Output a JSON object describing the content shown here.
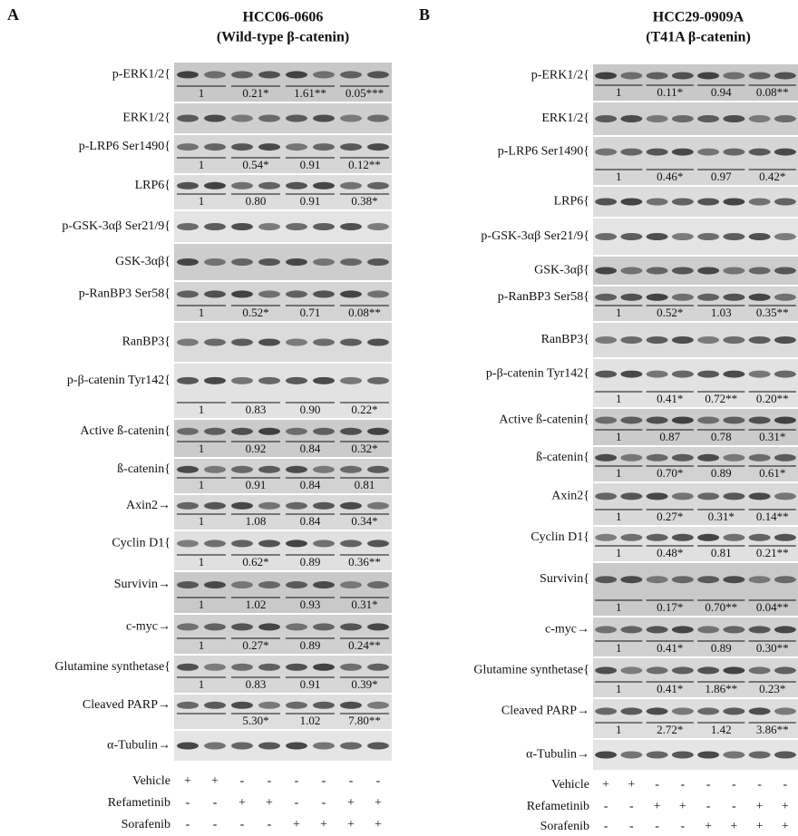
{
  "panels": [
    {
      "letter": "A",
      "title": [
        "HCC06-0606",
        "(Wild-type β-catenin)"
      ],
      "rows": [
        {
          "label": "p-ERK1/2",
          "marker": "{",
          "quant": [
            "1",
            "0.21*",
            "1.61**",
            "0.05***"
          ]
        },
        {
          "label": "ERK1/2",
          "marker": "{"
        },
        {
          "label": "p-LRP6 Ser1490",
          "marker": "{",
          "quant": [
            "1",
            "0.54*",
            "0.91",
            "0.12**"
          ]
        },
        {
          "label": "LRP6",
          "marker": "{",
          "quant": [
            "1",
            "0.80",
            "0.91",
            "0.38*"
          ]
        },
        {
          "label": "p-GSK-3αβ Ser21/9",
          "marker": "{"
        },
        {
          "label": "GSK-3αβ",
          "marker": "{"
        },
        {
          "label": "p-RanBP3 Ser58",
          "marker": "{",
          "quant": [
            "1",
            "0.52*",
            "0.71",
            "0.08**"
          ]
        },
        {
          "label": "RanBP3",
          "marker": "{"
        },
        {
          "label": "p-β-catenin Tyr142",
          "marker": "{",
          "quant": [
            "1",
            "0.83",
            "0.90",
            "0.22*"
          ]
        },
        {
          "label": "Active ß-catenin",
          "marker": "{",
          "quant": [
            "1",
            "0.92",
            "0.84",
            "0.32*"
          ]
        },
        {
          "label": "ß-catenin",
          "marker": "{",
          "quant": [
            "1",
            "0.91",
            "0.84",
            "0.81"
          ]
        },
        {
          "label": "Axin2",
          "marker": "→",
          "quant": [
            "1",
            "1.08",
            "0.84",
            "0.34*"
          ]
        },
        {
          "label": "Cyclin D1",
          "marker": "{",
          "quant": [
            "1",
            "0.62*",
            "0.89",
            "0.36**"
          ]
        },
        {
          "label": "Survivin",
          "marker": "→",
          "quant": [
            "1",
            "1.02",
            "0.93",
            "0.31*"
          ]
        },
        {
          "label": "c-myc",
          "marker": "→",
          "quant": [
            "1",
            "0.27*",
            "0.89",
            "0.24**"
          ]
        },
        {
          "label": "Glutamine synthetase",
          "marker": "{",
          "quant": [
            "1",
            "0.83",
            "0.91",
            "0.39*"
          ]
        },
        {
          "label": "Cleaved PARP",
          "marker": "→",
          "quant": [
            null,
            "5.30*",
            "1.02",
            "7.80**"
          ]
        },
        {
          "label": "α-Tubulin",
          "marker": "→"
        }
      ],
      "treatments": [
        {
          "name": "Vehicle",
          "signs": [
            "+",
            "+",
            "-",
            "-",
            "-",
            "-",
            "-",
            "-"
          ]
        },
        {
          "name": "Refametinib",
          "signs": [
            "-",
            "-",
            "+",
            "+",
            "-",
            "-",
            "+",
            "+"
          ]
        },
        {
          "name": "Sorafenib",
          "signs": [
            "-",
            "-",
            "-",
            "-",
            "+",
            "+",
            "+",
            "+"
          ]
        }
      ]
    },
    {
      "letter": "B",
      "title": [
        "HCC29-0909A",
        "(T41A β-catenin)"
      ],
      "rows": [
        {
          "label": "p-ERK1/2",
          "marker": "{",
          "quant": [
            "1",
            "0.11*",
            "0.94",
            "0.08**"
          ]
        },
        {
          "label": "ERK1/2",
          "marker": "{"
        },
        {
          "label": "p-LRP6 Ser1490",
          "marker": "{",
          "quant": [
            "1",
            "0.46*",
            "0.97",
            "0.42*"
          ]
        },
        {
          "label": "LRP6",
          "marker": "{"
        },
        {
          "label": "p-GSK-3αβ Ser21/9",
          "marker": "{"
        },
        {
          "label": "GSK-3αβ",
          "marker": "{"
        },
        {
          "label": "p-RanBP3 Ser58",
          "marker": "{",
          "quant": [
            "1",
            "0.52*",
            "1.03",
            "0.35**"
          ]
        },
        {
          "label": "RanBP3",
          "marker": "{"
        },
        {
          "label": "p-β-catenin Tyr142",
          "marker": "{",
          "quant": [
            "1",
            "0.41*",
            "0.72**",
            "0.20**"
          ]
        },
        {
          "label": "Active ß-catenin",
          "marker": "{",
          "quant": [
            "1",
            "0.87",
            "0.78",
            "0.31*"
          ]
        },
        {
          "label": "ß-catenin",
          "marker": "{",
          "quant": [
            "1",
            "0.70*",
            "0.89",
            "0.61*"
          ]
        },
        {
          "label": "Axin2",
          "marker": "{",
          "quant": [
            "1",
            "0.27*",
            "0.31*",
            "0.14**"
          ]
        },
        {
          "label": "Cyclin D1",
          "marker": "{",
          "quant": [
            "1",
            "0.48*",
            "0.81",
            "0.21**"
          ]
        },
        {
          "label": "Survivin",
          "marker": "{",
          "quant": [
            "1",
            "0.17*",
            "0.70**",
            "0.04**"
          ]
        },
        {
          "label": "c-myc",
          "marker": "→",
          "quant": [
            "1",
            "0.41*",
            "0.89",
            "0.30**"
          ]
        },
        {
          "label": "Glutamine synthetase",
          "marker": "{",
          "quant": [
            "1",
            "0.41*",
            "1.86**",
            "0.23*"
          ]
        },
        {
          "label": "Cleaved PARP",
          "marker": "→",
          "quant": [
            "1",
            "2.72*",
            "1.42",
            "3.86**"
          ]
        },
        {
          "label": "α-Tubulin",
          "marker": "→"
        }
      ],
      "treatments": [
        {
          "name": "Vehicle",
          "signs": [
            "+",
            "+",
            "-",
            "-",
            "-",
            "-",
            "-",
            "-"
          ]
        },
        {
          "name": "Refametinib",
          "signs": [
            "-",
            "-",
            "+",
            "+",
            "-",
            "-",
            "+",
            "+"
          ]
        },
        {
          "name": "Sorafenib",
          "signs": [
            "-",
            "-",
            "-",
            "-",
            "+",
            "+",
            "+",
            "+"
          ]
        }
      ]
    }
  ]
}
